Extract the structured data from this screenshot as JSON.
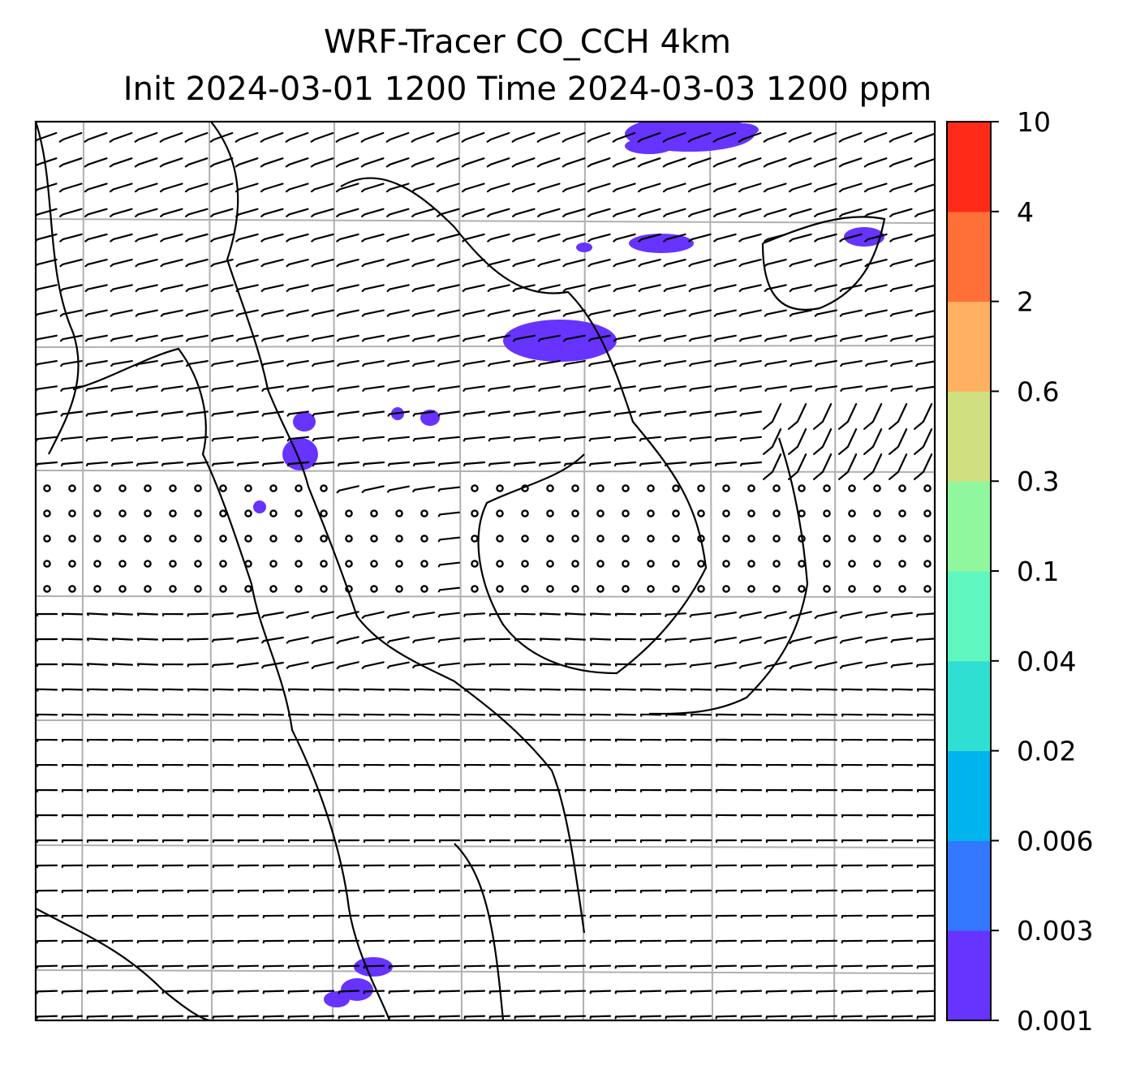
{
  "title": {
    "line1": "WRF-Tracer CO_CCH 4km",
    "line2": "Init 2024-03-01 1200 Time 2024-03-03 1200 ppm"
  },
  "map": {
    "variable": "CO_CCH tracer",
    "units": "ppm",
    "wind_barbs": true,
    "coastlines": true,
    "gridlines": true,
    "gridline_color": "#b0b0b0",
    "tracer_fill_color": "#6633ff"
  },
  "colorbar": {
    "levels": [
      "0.001",
      "0.003",
      "0.006",
      "0.02",
      "0.04",
      "0.1",
      "0.3",
      "0.6",
      "2",
      "4",
      "10"
    ],
    "colors": [
      "#6633ff",
      "#3377ff",
      "#00b4ee",
      "#2fe0d2",
      "#60f6c0",
      "#90f79e",
      "#d0e080",
      "#ffb060",
      "#ff7038",
      "#ff2a18"
    ]
  }
}
